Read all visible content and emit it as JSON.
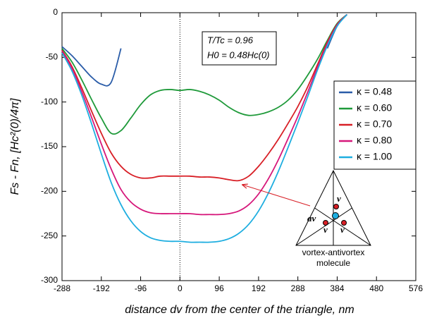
{
  "chart_data": {
    "type": "line",
    "x_label": "distance dv from the center of the triangle, nm",
    "y_label": "Fs - Fn, [Hc²(0)/4π]",
    "annotations": [
      "T/Tc = 0.96",
      "H0 = 0.48Hc(0)"
    ],
    "inset": {
      "labels": [
        "v",
        "av",
        "v",
        "v"
      ],
      "caption": [
        "vortex-antivortex",
        "molecule"
      ]
    },
    "xlim": [
      -288,
      576
    ],
    "xticks": [
      -288,
      -192,
      -96,
      0,
      96,
      192,
      288,
      384,
      480,
      576
    ],
    "ylim": [
      -300,
      0
    ],
    "yticks": [
      -300,
      -250,
      -200,
      -150,
      -100,
      -50,
      0
    ],
    "vline": 0,
    "x": [
      -288,
      -264,
      -240,
      -216,
      -192,
      -168,
      -144,
      -120,
      -96,
      -72,
      -48,
      -24,
      0,
      24,
      48,
      72,
      96,
      120,
      144,
      168,
      192,
      216,
      240,
      264,
      288,
      312,
      336,
      360,
      384,
      408
    ],
    "series": [
      {
        "name": "κ = 0.48",
        "color": "#2a5ca8",
        "values": [
          -38,
          -48,
          -60,
          -72,
          -80,
          -78,
          -40,
          null,
          null,
          null,
          null,
          null,
          null,
          null,
          null,
          null,
          null,
          null,
          null,
          null,
          null,
          null,
          null,
          null,
          null,
          null,
          null,
          -40,
          -15,
          -2
        ]
      },
      {
        "name": "κ = 0.60",
        "color": "#1f9a3a",
        "values": [
          -40,
          -55,
          -75,
          -97,
          -118,
          -135,
          -132,
          -118,
          -103,
          -92,
          -87,
          -86,
          -87,
          -86,
          -88,
          -92,
          -98,
          -106,
          -112,
          -115,
          -114,
          -111,
          -106,
          -98,
          -86,
          -70,
          -52,
          -31,
          -12,
          -2
        ]
      },
      {
        "name": "κ = 0.70",
        "color": "#d81f26",
        "values": [
          -42,
          -60,
          -84,
          -110,
          -135,
          -157,
          -172,
          -181,
          -185,
          -185,
          -183,
          -183,
          -183,
          -183,
          -184,
          -184,
          -185,
          -187,
          -188,
          -183,
          -172,
          -158,
          -142,
          -124,
          -105,
          -83,
          -58,
          -33,
          -13,
          -2
        ]
      },
      {
        "name": "κ = 0.80",
        "color": "#d6177a",
        "values": [
          -43,
          -62,
          -88,
          -117,
          -147,
          -175,
          -198,
          -212,
          -220,
          -224,
          -225,
          -225,
          -225,
          -225,
          -226,
          -226,
          -226,
          -225,
          -222,
          -215,
          -203,
          -186,
          -165,
          -141,
          -116,
          -89,
          -61,
          -35,
          -14,
          -2
        ]
      },
      {
        "name": "κ = 1.00",
        "color": "#1eaee0",
        "values": [
          -45,
          -65,
          -92,
          -124,
          -158,
          -190,
          -215,
          -233,
          -245,
          -252,
          -255,
          -256,
          -256,
          -257,
          -257,
          -257,
          -256,
          -253,
          -247,
          -237,
          -222,
          -202,
          -178,
          -151,
          -123,
          -94,
          -64,
          -37,
          -15,
          -2
        ]
      }
    ]
  }
}
